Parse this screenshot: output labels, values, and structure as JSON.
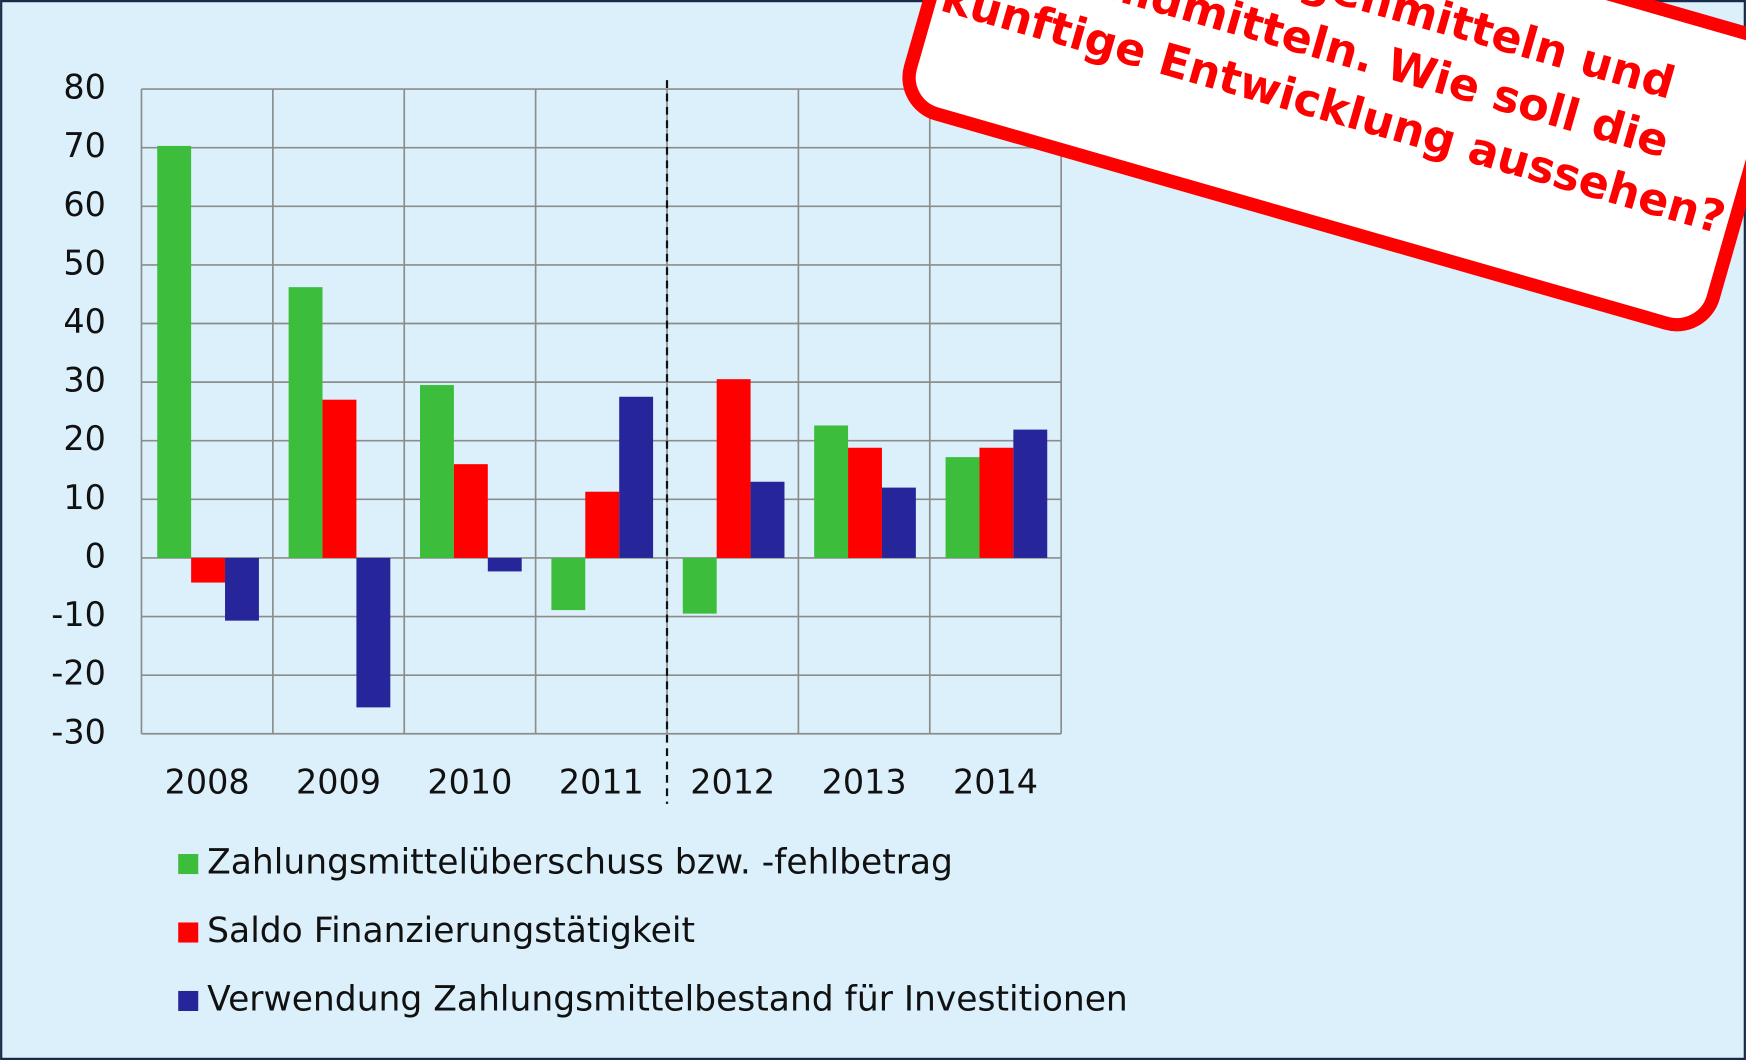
{
  "chart_data": {
    "type": "bar",
    "categories": [
      "2008",
      "2009",
      "2010",
      "2011",
      "2012",
      "2013",
      "2014"
    ],
    "series": [
      {
        "name": "Zahlungsmittelüberschuss bzw. -fehlbetrag",
        "color": "#3cbe3c",
        "values": [
          70.3,
          46.2,
          29.5,
          -8.9,
          -9.5,
          22.6,
          17.2
        ]
      },
      {
        "name": "Saldo Finanzierungstätigkeit",
        "color": "#ff0000",
        "values": [
          -4.2,
          27,
          16,
          11.3,
          30.5,
          18.8,
          18.8
        ]
      },
      {
        "name": "Verwendung Zahlungsmittelbestand für Investitionen",
        "color": "#26269a",
        "values": [
          -10.7,
          -25.5,
          -2.3,
          27.5,
          13,
          12,
          21.9
        ]
      }
    ],
    "ylim": [
      -30,
      80
    ],
    "yticks": [
      -30,
      -20,
      -10,
      0,
      10,
      20,
      30,
      40,
      50,
      60,
      70,
      80
    ],
    "grid": true,
    "annotation": [
      "mix aus Eigenmitteln und",
      "Fremdmitteln. Wie soll die",
      "künftige Entwicklung aussehen?"
    ]
  }
}
